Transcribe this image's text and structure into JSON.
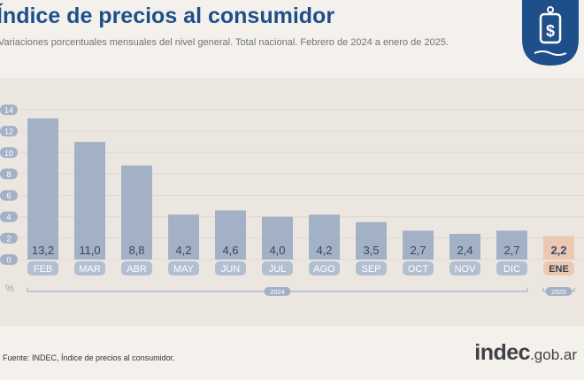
{
  "header": {
    "title": "Índice de precios al consumidor",
    "subtitle": "Variaciones porcentuales mensuales del nivel general. Total nacional. Febrero de 2024 a enero de 2025."
  },
  "logo": {
    "icon": "price-tag-dollar-icon",
    "color": "#1f4f8a"
  },
  "colors": {
    "bar": "#a3b1c6",
    "bar_highlight": "#ecc7b2",
    "title": "#1f4f8a",
    "tick_pill": "#a3b1c6",
    "month_pill": "#b2bfd1",
    "year_line": "#a3b1c6"
  },
  "chart_data": {
    "type": "bar",
    "categories": [
      "FEB",
      "MAR",
      "ABR",
      "MAY",
      "JUN",
      "JUL",
      "AGO",
      "SEP",
      "OCT",
      "NOV",
      "DIC",
      "ENE"
    ],
    "values": [
      13.2,
      11.0,
      8.8,
      4.2,
      4.6,
      4.0,
      4.2,
      3.5,
      2.7,
      2.4,
      2.7,
      2.2
    ],
    "value_labels": [
      "13,2",
      "11,0",
      "8,8",
      "4,2",
      "4,6",
      "4,0",
      "4,2",
      "3,5",
      "2,7",
      "2,4",
      "2,7",
      "2,2"
    ],
    "highlight_index": 11,
    "years": [
      {
        "label": "2024",
        "from": 0,
        "to": 10
      },
      {
        "label": "2025",
        "from": 11,
        "to": 11
      }
    ],
    "ylabel": "%",
    "ylim": [
      0,
      14
    ],
    "yticks": [
      0,
      2,
      4,
      6,
      8,
      10,
      12,
      14
    ],
    "grid": true
  },
  "footer": {
    "source": "Fuente: INDEC, Índice de precios al consumidor.",
    "brand_main": "indec",
    "brand_domain": ".gob.ar"
  }
}
